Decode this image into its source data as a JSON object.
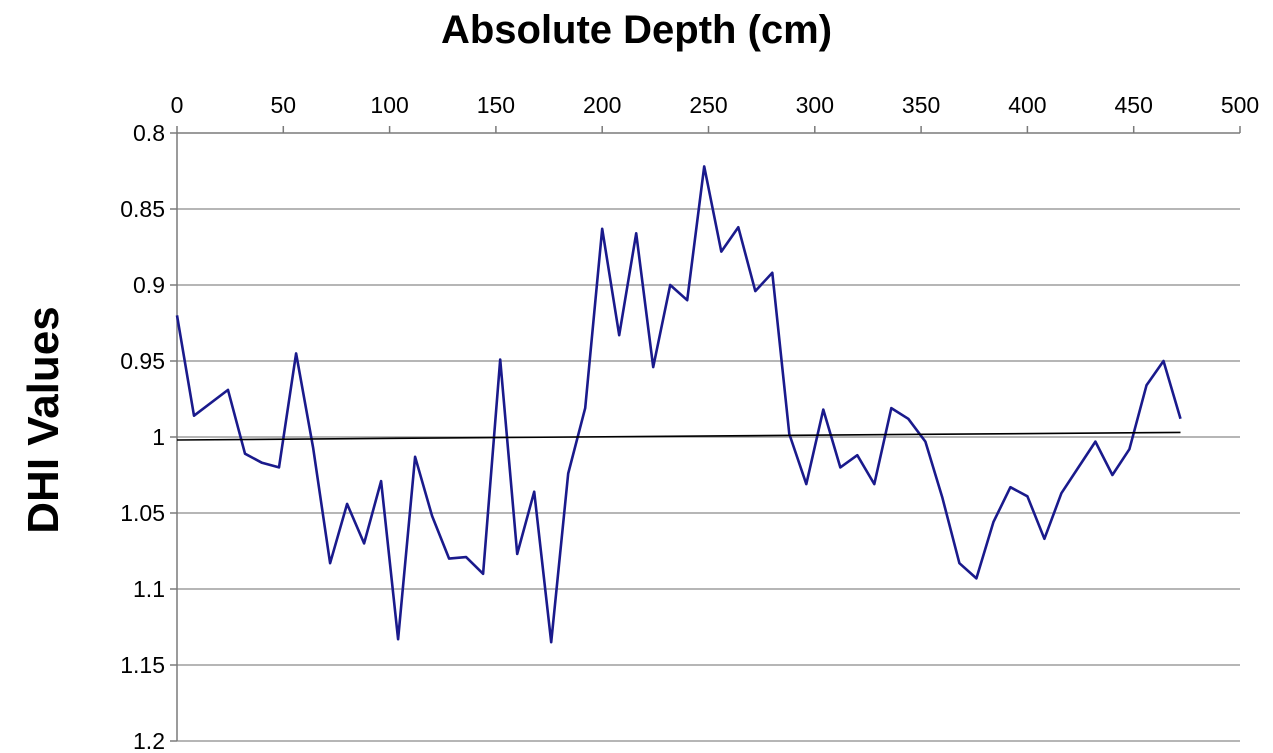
{
  "chart_data": {
    "type": "line",
    "title": "",
    "xlabel": "Absolute Depth (cm)",
    "ylabel": "DHI Values",
    "x_axis_position": "top",
    "y_axis_inverted": true,
    "xlim": [
      0,
      500
    ],
    "ylim": [
      0.8,
      1.2
    ],
    "x_ticks": [
      0,
      50,
      100,
      150,
      200,
      250,
      300,
      350,
      400,
      450,
      500
    ],
    "y_ticks": [
      0.8,
      0.85,
      0.9,
      0.95,
      1,
      1.05,
      1.1,
      1.15,
      1.2
    ],
    "x_tick_labels": [
      "0",
      "50",
      "100",
      "150",
      "200",
      "250",
      "300",
      "350",
      "400",
      "450",
      "500"
    ],
    "y_tick_labels": [
      "0.8",
      "0.85",
      "0.9",
      "0.95",
      "1",
      "1.05",
      "1.1",
      "1.15",
      "1.2"
    ],
    "grid": "horizontal",
    "legend": "none",
    "series": [
      {
        "color": "#1a1a8c",
        "x": [
          0,
          8,
          24,
          32,
          40,
          48,
          56,
          64,
          72,
          80,
          88,
          96,
          104,
          112,
          120,
          128,
          136,
          144,
          152,
          160,
          168,
          176,
          184,
          192,
          200,
          208,
          216,
          224,
          232,
          240,
          248,
          256,
          264,
          272,
          280,
          288,
          296,
          304,
          312,
          320,
          328,
          336,
          344,
          352,
          360,
          368,
          376,
          384,
          392,
          400,
          408,
          416,
          424,
          432,
          440,
          448,
          456,
          464,
          472
        ],
        "values": [
          0.92,
          0.986,
          0.969,
          1.011,
          1.017,
          1.02,
          0.945,
          1.007,
          1.083,
          1.044,
          1.07,
          1.029,
          1.133,
          1.013,
          1.052,
          1.08,
          1.079,
          1.09,
          0.949,
          1.077,
          1.036,
          1.135,
          1.024,
          0.981,
          0.863,
          0.933,
          0.866,
          0.954,
          0.9,
          0.91,
          0.822,
          0.878,
          0.862,
          0.904,
          0.892,
          0.998,
          1.031,
          0.982,
          1.02,
          1.012,
          1.031,
          0.981,
          0.988,
          1.003,
          1.04,
          1.083,
          1.093,
          1.056,
          1.033,
          1.039,
          1.067,
          1.037,
          1.02,
          1.003,
          1.025,
          1.008,
          0.966,
          0.95,
          0.988
        ]
      },
      {
        "color": "#000000",
        "x": [
          0,
          472
        ],
        "values": [
          1.002,
          0.997
        ]
      }
    ]
  }
}
